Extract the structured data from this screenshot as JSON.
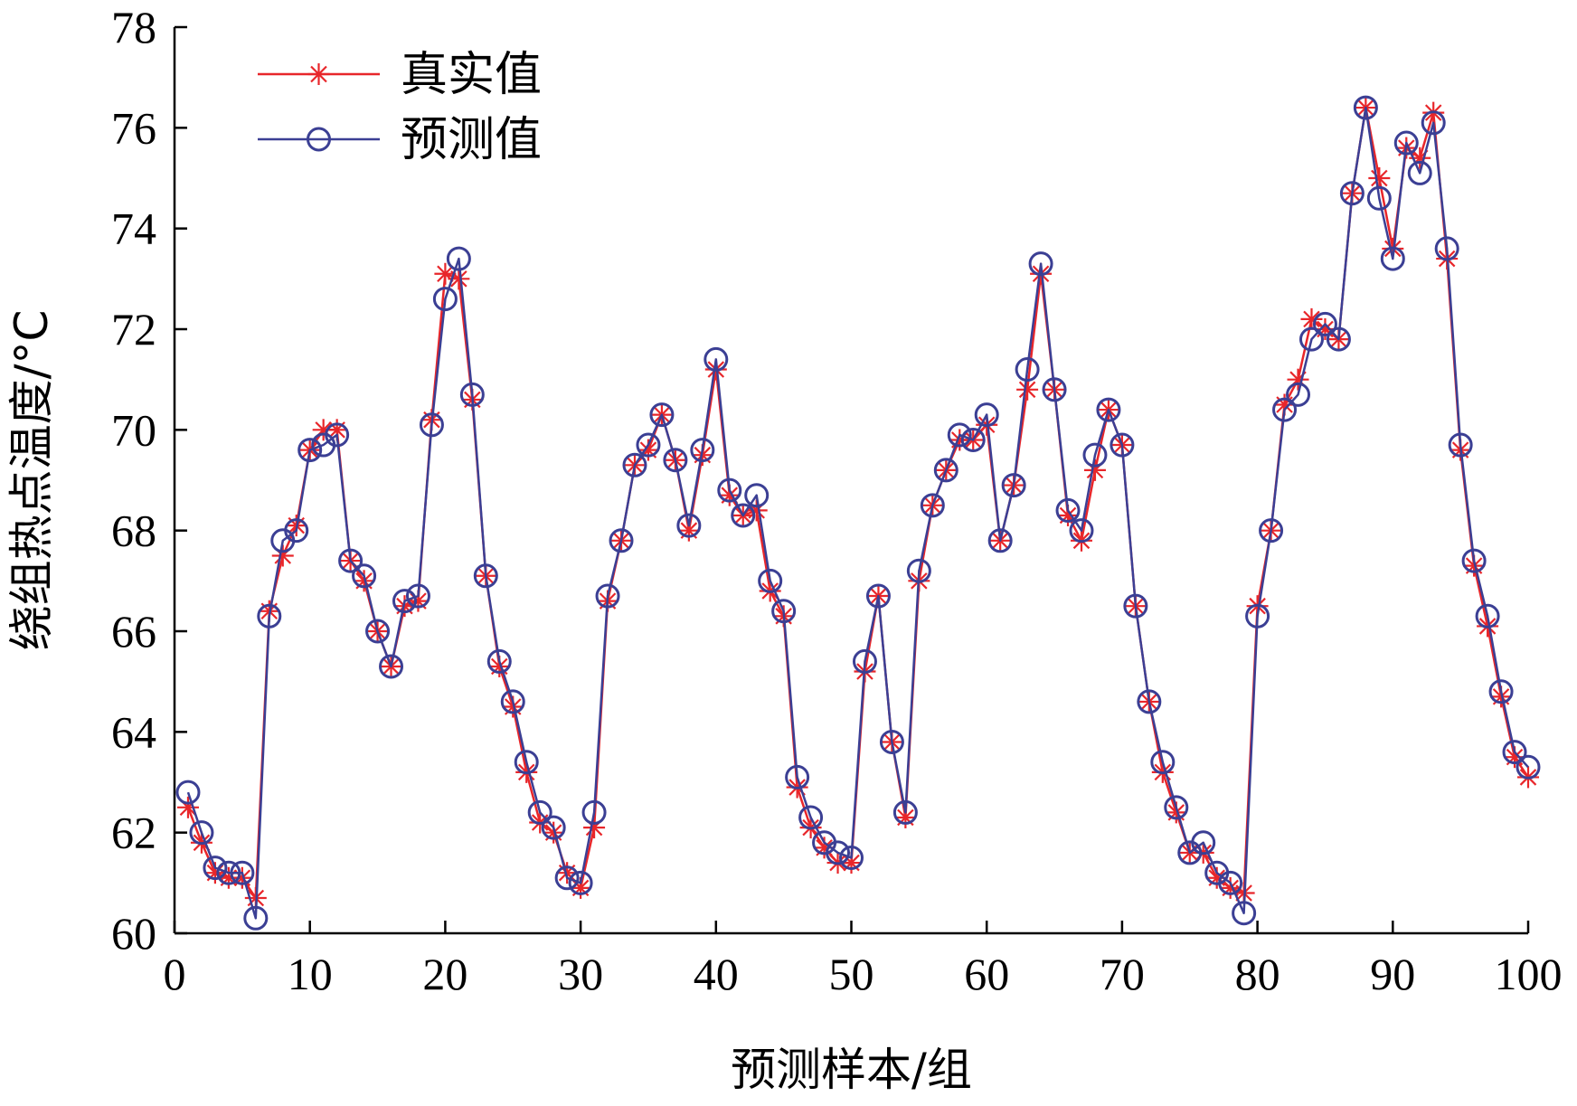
{
  "chart_data": {
    "type": "line",
    "xlabel": "预测样本/组",
    "ylabel": "绕组热点温度/°C",
    "xlim": [
      0,
      100
    ],
    "ylim": [
      60,
      78
    ],
    "xticks": [
      0,
      10,
      20,
      30,
      40,
      50,
      60,
      70,
      80,
      90,
      100
    ],
    "yticks": [
      60,
      62,
      64,
      66,
      68,
      70,
      72,
      74,
      76,
      78
    ],
    "legend_position": "top-left",
    "grid": false,
    "x": [
      1,
      2,
      3,
      4,
      5,
      6,
      7,
      8,
      9,
      10,
      11,
      12,
      13,
      14,
      15,
      16,
      17,
      18,
      19,
      20,
      21,
      22,
      23,
      24,
      25,
      26,
      27,
      28,
      29,
      30,
      31,
      32,
      33,
      34,
      35,
      36,
      37,
      38,
      39,
      40,
      41,
      42,
      43,
      44,
      45,
      46,
      47,
      48,
      49,
      50,
      51,
      52,
      53,
      54,
      55,
      56,
      57,
      58,
      59,
      60,
      61,
      62,
      63,
      64,
      65,
      66,
      67,
      68,
      69,
      70,
      71,
      72,
      73,
      74,
      75,
      76,
      77,
      78,
      79,
      80,
      81,
      82,
      83,
      84,
      85,
      86,
      87,
      88,
      89,
      90,
      91,
      92,
      93,
      94,
      95,
      96,
      97,
      98,
      99,
      100
    ],
    "series": [
      {
        "name": "真实值",
        "color": "#e8262a",
        "marker": "asterisk",
        "values": [
          62.5,
          61.8,
          61.2,
          61.1,
          61.1,
          60.7,
          66.4,
          67.5,
          68.1,
          69.6,
          70.0,
          70.0,
          67.4,
          67.0,
          66.0,
          65.3,
          66.5,
          66.6,
          70.2,
          73.1,
          73.0,
          70.6,
          67.1,
          65.3,
          64.5,
          63.2,
          62.2,
          62.0,
          61.2,
          60.9,
          62.1,
          66.6,
          67.8,
          69.3,
          69.6,
          70.3,
          69.4,
          68.0,
          69.5,
          71.2,
          68.7,
          68.3,
          68.4,
          66.8,
          66.3,
          62.9,
          62.1,
          61.7,
          61.4,
          61.4,
          65.2,
          66.7,
          63.8,
          62.3,
          67.0,
          68.5,
          69.2,
          69.8,
          69.8,
          70.1,
          67.8,
          68.9,
          70.8,
          73.1,
          70.8,
          68.3,
          67.8,
          69.2,
          70.4,
          69.7,
          66.5,
          64.6,
          63.2,
          62.4,
          61.6,
          61.6,
          61.1,
          60.9,
          60.8,
          66.5,
          68.0,
          70.5,
          71.0,
          72.2,
          72.0,
          71.8,
          74.7,
          76.4,
          75.0,
          73.6,
          75.6,
          75.4,
          76.3,
          73.4,
          69.6,
          67.3,
          66.1,
          64.7,
          63.5,
          63.1
        ]
      },
      {
        "name": "预测值",
        "color": "#3b3f94",
        "marker": "circle",
        "values": [
          62.8,
          62.0,
          61.3,
          61.2,
          61.2,
          60.3,
          66.3,
          67.8,
          68.0,
          69.6,
          69.7,
          69.9,
          67.4,
          67.1,
          66.0,
          65.3,
          66.6,
          66.7,
          70.1,
          72.6,
          73.4,
          70.7,
          67.1,
          65.4,
          64.6,
          63.4,
          62.4,
          62.1,
          61.1,
          61.0,
          62.4,
          66.7,
          67.8,
          69.3,
          69.7,
          70.3,
          69.4,
          68.1,
          69.6,
          71.4,
          68.8,
          68.3,
          68.7,
          67.0,
          66.4,
          63.1,
          62.3,
          61.8,
          61.6,
          61.5,
          65.4,
          66.7,
          63.8,
          62.4,
          67.2,
          68.5,
          69.2,
          69.9,
          69.8,
          70.3,
          67.8,
          68.9,
          71.2,
          73.3,
          70.8,
          68.4,
          68.0,
          69.5,
          70.4,
          69.7,
          66.5,
          64.6,
          63.4,
          62.5,
          61.6,
          61.8,
          61.2,
          61.0,
          60.4,
          66.3,
          68.0,
          70.4,
          70.7,
          71.8,
          72.1,
          71.8,
          74.7,
          76.4,
          74.6,
          73.4,
          75.7,
          75.1,
          76.1,
          73.6,
          69.7,
          67.4,
          66.3,
          64.8,
          63.6,
          63.3
        ]
      }
    ]
  }
}
